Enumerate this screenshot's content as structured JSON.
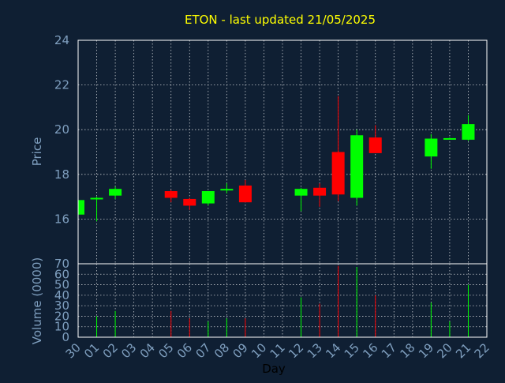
{
  "chart_data": {
    "type": "candlestick",
    "title": "ETON - last updated 21/05/2025",
    "price_panel": {
      "ylabel": "Price",
      "ylim": [
        14.0,
        24.0
      ],
      "yticks": [
        16,
        18,
        20,
        22,
        24
      ]
    },
    "volume_panel": {
      "ylabel": "Volume (0000)",
      "ylim": [
        0,
        70
      ],
      "yticks": [
        0,
        10,
        20,
        30,
        40,
        50,
        60,
        70
      ]
    },
    "xlabel": "Day",
    "x_tick_labels": [
      "30",
      "01",
      "02",
      "03",
      "04",
      "05",
      "06",
      "07",
      "08",
      "09",
      "10",
      "11",
      "12",
      "13",
      "14",
      "15",
      "16",
      "17",
      "18",
      "19",
      "20",
      "21",
      "22"
    ],
    "grid": true,
    "colors": {
      "up": "#00ff00",
      "down": "#ff0000",
      "background": "#0f1f33",
      "title": "#ffff00",
      "axis_text": "#7f9fbf"
    },
    "candles": [
      {
        "x": "30",
        "open": 16.2,
        "high": 16.85,
        "low": 16.2,
        "close": 16.85,
        "volume": 0
      },
      {
        "x": "01",
        "open": 16.9,
        "high": 17.0,
        "low": 15.9,
        "close": 16.95,
        "volume": 20
      },
      {
        "x": "02",
        "open": 17.05,
        "high": 17.45,
        "low": 16.9,
        "close": 17.35,
        "volume": 25
      },
      {
        "x": "05",
        "open": 17.25,
        "high": 17.3,
        "low": 16.75,
        "close": 16.95,
        "volume": 25
      },
      {
        "x": "06",
        "open": 16.9,
        "high": 16.95,
        "low": 16.4,
        "close": 16.6,
        "volume": 18
      },
      {
        "x": "07",
        "open": 16.7,
        "high": 17.25,
        "low": 16.6,
        "close": 17.25,
        "volume": 15
      },
      {
        "x": "08",
        "open": 17.3,
        "high": 17.6,
        "low": 17.15,
        "close": 17.35,
        "volume": 18
      },
      {
        "x": "09",
        "open": 17.5,
        "high": 17.75,
        "low": 16.75,
        "close": 16.75,
        "volume": 18
      },
      {
        "x": "12",
        "open": 17.05,
        "high": 17.4,
        "low": 16.35,
        "close": 17.35,
        "volume": 38
      },
      {
        "x": "13",
        "open": 17.4,
        "high": 17.6,
        "low": 16.55,
        "close": 17.05,
        "volume": 32
      },
      {
        "x": "14",
        "open": 19.0,
        "high": 21.5,
        "low": 16.8,
        "close": 17.1,
        "volume": 68
      },
      {
        "x": "15",
        "open": 16.95,
        "high": 20.0,
        "low": 16.6,
        "close": 19.75,
        "volume": 67
      },
      {
        "x": "16",
        "open": 19.65,
        "high": 20.2,
        "low": 18.95,
        "close": 18.95,
        "volume": 40
      },
      {
        "x": "19",
        "open": 18.8,
        "high": 19.8,
        "low": 18.25,
        "close": 19.6,
        "volume": 33
      },
      {
        "x": "20",
        "open": 19.6,
        "high": 19.65,
        "low": 19.55,
        "close": 19.62,
        "volume": 15
      },
      {
        "x": "21",
        "open": 19.55,
        "high": 20.65,
        "low": 19.5,
        "close": 20.25,
        "volume": 50
      }
    ]
  }
}
